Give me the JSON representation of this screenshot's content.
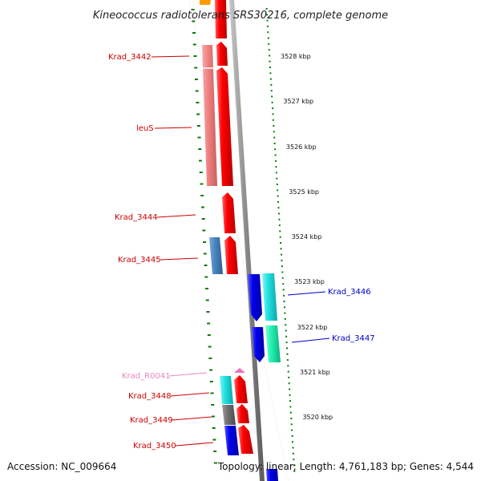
{
  "title": "Kineococcus radiotolerans SRS30216, complete genome",
  "footer": {
    "accession": "Accession: NC_009664",
    "summary": "Topology: linear; Length: 4,761,183 bp; Genes: 4,544"
  },
  "ticks": [
    "3528 kbp",
    "3527 kbp",
    "3526 kbp",
    "3525 kbp",
    "3524 kbp",
    "3523 kbp",
    "3522 kbp",
    "3521 kbp",
    "3520 kbp"
  ],
  "gene_labels": [
    {
      "text": "Krad_3442",
      "color": "#cc0000"
    },
    {
      "text": "leuS",
      "color": "#cc0000"
    },
    {
      "text": "Krad_3444",
      "color": "#cc0000"
    },
    {
      "text": "Krad_3445",
      "color": "#cc0000"
    },
    {
      "text": "Krad_3446",
      "color": "#0000cc"
    },
    {
      "text": "Krad_3447",
      "color": "#0000cc"
    },
    {
      "text": "Krad_R0041",
      "color": "#e887c0"
    },
    {
      "text": "Krad_3448",
      "color": "#cc0000"
    },
    {
      "text": "Krad_3449",
      "color": "#cc0000"
    },
    {
      "text": "Krad_3450",
      "color": "#cc0000"
    }
  ],
  "colors": {
    "forward_gene": "#ee0000",
    "reverse_gene": "#1010e0",
    "cog_salmon": "#f08080",
    "cog_steelblue": "#4a86c0",
    "cog_cyan": "#20e0e0",
    "cog_seagreen": "#20f0b0",
    "cog_gray": "#707070",
    "rna_pink": "#f070c0",
    "dots": "#0a7a0a",
    "backbone": "#888888"
  }
}
